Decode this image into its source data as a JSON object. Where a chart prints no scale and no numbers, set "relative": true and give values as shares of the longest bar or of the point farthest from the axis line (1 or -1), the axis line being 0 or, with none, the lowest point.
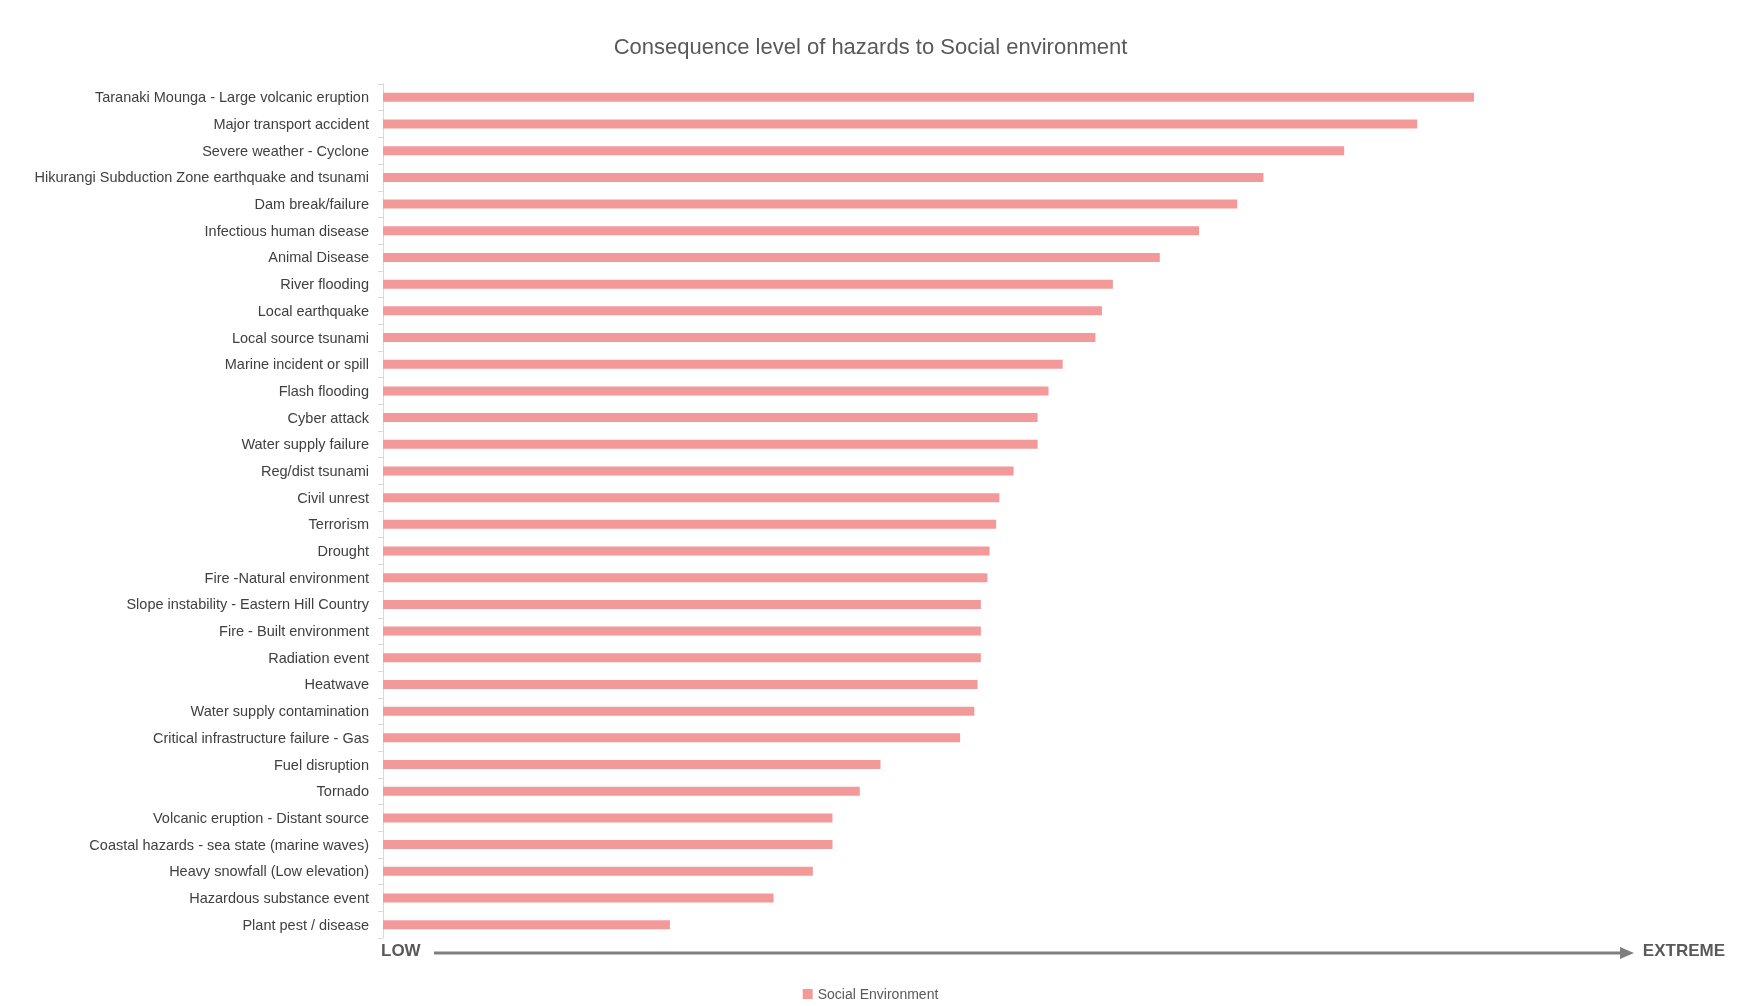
{
  "chart_data": {
    "type": "bar",
    "orientation": "horizontal",
    "relative": true,
    "title": "Consequence level of hazards to Social environment",
    "categories": [
      "Taranaki Mounga - Large volcanic eruption",
      "Major transport accident",
      "Severe weather - Cyclone",
      "Hikurangi Subduction Zone earthquake and tsunami",
      "Dam break/failure",
      "Infectious human disease",
      "Animal Disease",
      "River flooding",
      "Local earthquake",
      "Local source tsunami",
      "Marine incident or spill",
      "Flash flooding",
      "Cyber attack",
      "Water supply failure",
      "Reg/dist tsunami",
      "Civil unrest",
      "Terrorism",
      "Drought",
      "Fire -Natural environment",
      "Slope instability - Eastern Hill Country",
      "Fire - Built environment",
      "Radiation event",
      "Heatwave",
      "Water supply contamination",
      "Critical infrastructure failure - Gas",
      "Fuel disruption",
      "Tornado",
      "Volcanic eruption - Distant source",
      "Coastal hazards - sea state (marine waves)",
      "Heavy snowfall (Low elevation)",
      "Hazardous substance event",
      "Plant pest / disease"
    ],
    "series": [
      {
        "name": "Social Environment",
        "color": "#f4999a",
        "values": [
          1,
          0.948,
          0.881,
          0.807,
          0.783,
          0.748,
          0.712,
          0.669,
          0.659,
          0.653,
          0.623,
          0.61,
          0.6,
          0.6,
          0.578,
          0.565,
          0.562,
          0.556,
          0.554,
          0.548,
          0.548,
          0.548,
          0.545,
          0.542,
          0.529,
          0.456,
          0.437,
          0.412,
          0.412,
          0.394,
          0.358,
          0.263
        ]
      }
    ],
    "annotations": [
      "LOW",
      "EXTREME"
    ],
    "legend": "bottom"
  }
}
